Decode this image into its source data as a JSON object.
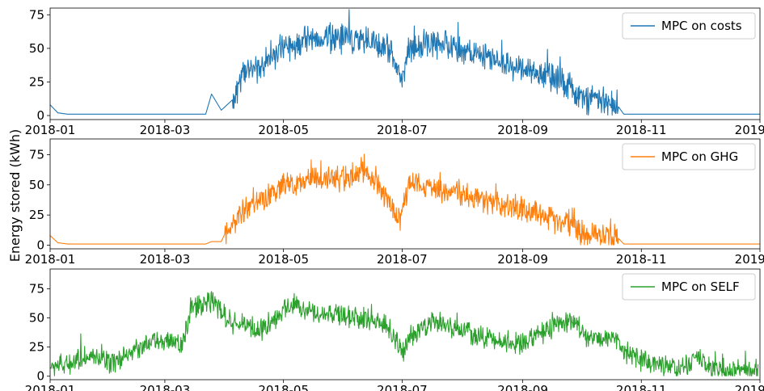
{
  "figure": {
    "shared_ylabel": "Energy stored (kWh)"
  },
  "chart_data": [
    {
      "type": "line",
      "series": [
        {
          "name": "MPC on costs",
          "color": "#1f77b4"
        }
      ],
      "xlim": [
        "2018-01-01",
        "2019-01-01"
      ],
      "xticks": [
        {
          "date": "2018-01-01",
          "label": "2018-01"
        },
        {
          "date": "2018-03-01",
          "label": "2018-03"
        },
        {
          "date": "2018-05-01",
          "label": "2018-05"
        },
        {
          "date": "2018-07-01",
          "label": "2018-07"
        },
        {
          "date": "2018-09-01",
          "label": "2018-09"
        },
        {
          "date": "2018-11-01",
          "label": "2018-11"
        },
        {
          "date": "2019-01-01",
          "label": "2019-01"
        }
      ],
      "ylim": [
        -3,
        80
      ],
      "yticks": [
        0,
        25,
        50,
        75
      ],
      "legend_position": "top-right",
      "grid": false,
      "envelope": [
        [
          "2018-01-01",
          8
        ],
        [
          "2018-01-05",
          2
        ],
        [
          "2018-01-10",
          1
        ],
        [
          "2018-03-22",
          1
        ],
        [
          "2018-03-25",
          16
        ],
        [
          "2018-03-30",
          4
        ],
        [
          "2018-04-05",
          12
        ],
        [
          "2018-04-10",
          32
        ],
        [
          "2018-04-20",
          38
        ],
        [
          "2018-05-01",
          50
        ],
        [
          "2018-05-15",
          58
        ],
        [
          "2018-06-01",
          58
        ],
        [
          "2018-06-15",
          55
        ],
        [
          "2018-06-25",
          50
        ],
        [
          "2018-07-01",
          25
        ],
        [
          "2018-07-05",
          50
        ],
        [
          "2018-07-20",
          55
        ],
        [
          "2018-08-01",
          48
        ],
        [
          "2018-08-15",
          42
        ],
        [
          "2018-09-01",
          36
        ],
        [
          "2018-09-15",
          28
        ],
        [
          "2018-09-25",
          22
        ],
        [
          "2018-10-01",
          12
        ],
        [
          "2018-10-20",
          7
        ],
        [
          "2018-10-23",
          1
        ],
        [
          "2019-01-01",
          1
        ]
      ],
      "noise_amplitude": 12,
      "noise_windows": [
        [
          "2018-04-05",
          "2018-10-20"
        ]
      ]
    },
    {
      "type": "line",
      "series": [
        {
          "name": "MPC on GHG",
          "color": "#ff7f0e"
        }
      ],
      "xlim": [
        "2018-01-01",
        "2019-01-01"
      ],
      "xticks": [
        {
          "date": "2018-01-01",
          "label": "2018-01"
        },
        {
          "date": "2018-03-01",
          "label": "2018-03"
        },
        {
          "date": "2018-05-01",
          "label": "2018-05"
        },
        {
          "date": "2018-07-01",
          "label": "2018-07"
        },
        {
          "date": "2018-09-01",
          "label": "2018-09"
        },
        {
          "date": "2018-11-01",
          "label": "2018-11"
        },
        {
          "date": "2019-01-01",
          "label": "2019-01"
        }
      ],
      "ylim": [
        -3,
        88
      ],
      "yticks": [
        0,
        25,
        50,
        75
      ],
      "legend_position": "top-right",
      "grid": false,
      "envelope": [
        [
          "2018-01-01",
          8
        ],
        [
          "2018-01-05",
          2
        ],
        [
          "2018-01-10",
          1
        ],
        [
          "2018-03-22",
          1
        ],
        [
          "2018-03-25",
          3
        ],
        [
          "2018-03-30",
          3
        ],
        [
          "2018-04-01",
          10
        ],
        [
          "2018-04-10",
          28
        ],
        [
          "2018-04-20",
          38
        ],
        [
          "2018-05-01",
          48
        ],
        [
          "2018-05-15",
          55
        ],
        [
          "2018-06-01",
          55
        ],
        [
          "2018-06-10",
          62
        ],
        [
          "2018-06-20",
          48
        ],
        [
          "2018-06-30",
          20
        ],
        [
          "2018-07-05",
          55
        ],
        [
          "2018-07-20",
          45
        ],
        [
          "2018-08-01",
          42
        ],
        [
          "2018-08-15",
          36
        ],
        [
          "2018-09-01",
          30
        ],
        [
          "2018-09-15",
          22
        ],
        [
          "2018-09-25",
          18
        ],
        [
          "2018-10-01",
          10
        ],
        [
          "2018-10-20",
          6
        ],
        [
          "2018-10-23",
          1
        ],
        [
          "2019-01-01",
          1
        ]
      ],
      "noise_amplitude": 11,
      "noise_windows": [
        [
          "2018-04-01",
          "2018-10-20"
        ]
      ]
    },
    {
      "type": "line",
      "series": [
        {
          "name": "MPC on SELF",
          "color": "#2ca02c"
        }
      ],
      "xlim": [
        "2018-01-01",
        "2019-01-01"
      ],
      "xticks": [
        {
          "date": "2018-01-01",
          "label": "2018-01"
        },
        {
          "date": "2018-03-01",
          "label": "2018-03"
        },
        {
          "date": "2018-05-01",
          "label": "2018-05"
        },
        {
          "date": "2018-07-01",
          "label": "2018-07"
        },
        {
          "date": "2018-09-01",
          "label": "2018-09"
        },
        {
          "date": "2018-11-01",
          "label": "2018-11"
        },
        {
          "date": "2019-01-01",
          "label": "2019-01"
        }
      ],
      "ylim": [
        -3,
        92
      ],
      "yticks": [
        0,
        25,
        50,
        75
      ],
      "legend_position": "top-right",
      "grid": false,
      "envelope": [
        [
          "2018-01-01",
          8
        ],
        [
          "2018-01-10",
          10
        ],
        [
          "2018-01-20",
          18
        ],
        [
          "2018-02-01",
          10
        ],
        [
          "2018-02-10",
          20
        ],
        [
          "2018-02-25",
          30
        ],
        [
          "2018-03-10",
          28
        ],
        [
          "2018-03-15",
          58
        ],
        [
          "2018-03-25",
          65
        ],
        [
          "2018-04-05",
          45
        ],
        [
          "2018-04-20",
          40
        ],
        [
          "2018-05-05",
          62
        ],
        [
          "2018-05-15",
          55
        ],
        [
          "2018-06-01",
          52
        ],
        [
          "2018-06-15",
          48
        ],
        [
          "2018-06-25",
          40
        ],
        [
          "2018-07-01",
          20
        ],
        [
          "2018-07-10",
          42
        ],
        [
          "2018-07-20",
          48
        ],
        [
          "2018-08-01",
          38
        ],
        [
          "2018-08-15",
          32
        ],
        [
          "2018-09-01",
          28
        ],
        [
          "2018-09-15",
          42
        ],
        [
          "2018-09-25",
          48
        ],
        [
          "2018-10-05",
          32
        ],
        [
          "2018-10-20",
          32
        ],
        [
          "2018-10-23",
          20
        ],
        [
          "2018-11-05",
          12
        ],
        [
          "2018-11-20",
          6
        ],
        [
          "2018-11-30",
          15
        ],
        [
          "2018-12-10",
          6
        ],
        [
          "2018-12-31",
          4
        ]
      ],
      "noise_amplitude": 10,
      "noise_windows": [
        [
          "2018-01-01",
          "2018-12-31"
        ]
      ]
    }
  ]
}
